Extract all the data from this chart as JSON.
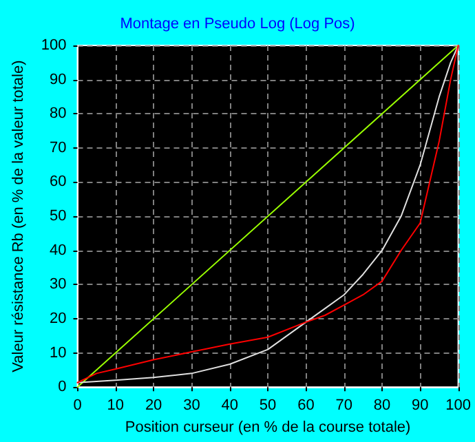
{
  "chart_data": {
    "type": "line",
    "title": "Montage en Pseudo Log (Log Pos)",
    "xlabel": "Position curseur (en % de la course totale)",
    "ylabel": "Valeur résistance Rb (en % de la valeur totale)",
    "xlim": [
      0,
      100
    ],
    "ylim": [
      0,
      100
    ],
    "xticks": [
      0,
      10,
      20,
      30,
      40,
      50,
      60,
      70,
      80,
      90,
      100
    ],
    "yticks": [
      0,
      10,
      20,
      30,
      40,
      50,
      60,
      70,
      80,
      90,
      100
    ],
    "grid": true,
    "marker": "none",
    "line_style": "solid",
    "series": [
      {
        "color": "#99ff00",
        "x": [
          0,
          100
        ],
        "values": [
          0,
          100
        ]
      },
      {
        "color": "#e0e0e0",
        "x": [
          0,
          10,
          20,
          30,
          40,
          50,
          60,
          65,
          70,
          75,
          80,
          85,
          90,
          95,
          98,
          100
        ],
        "values": [
          1.3,
          2,
          2.8,
          4,
          6.7,
          11,
          19,
          23,
          27,
          33,
          40,
          50,
          65,
          85,
          95,
          100
        ]
      },
      {
        "color": "#ff0000",
        "x": [
          0,
          5,
          10,
          20,
          30,
          40,
          50,
          60,
          65,
          70,
          75,
          80,
          85,
          90,
          95,
          98,
          100
        ],
        "values": [
          1.3,
          4,
          5.3,
          8,
          10.3,
          12.6,
          14.6,
          19,
          21,
          24,
          27,
          31,
          40,
          48,
          72,
          90,
          100
        ]
      }
    ]
  }
}
